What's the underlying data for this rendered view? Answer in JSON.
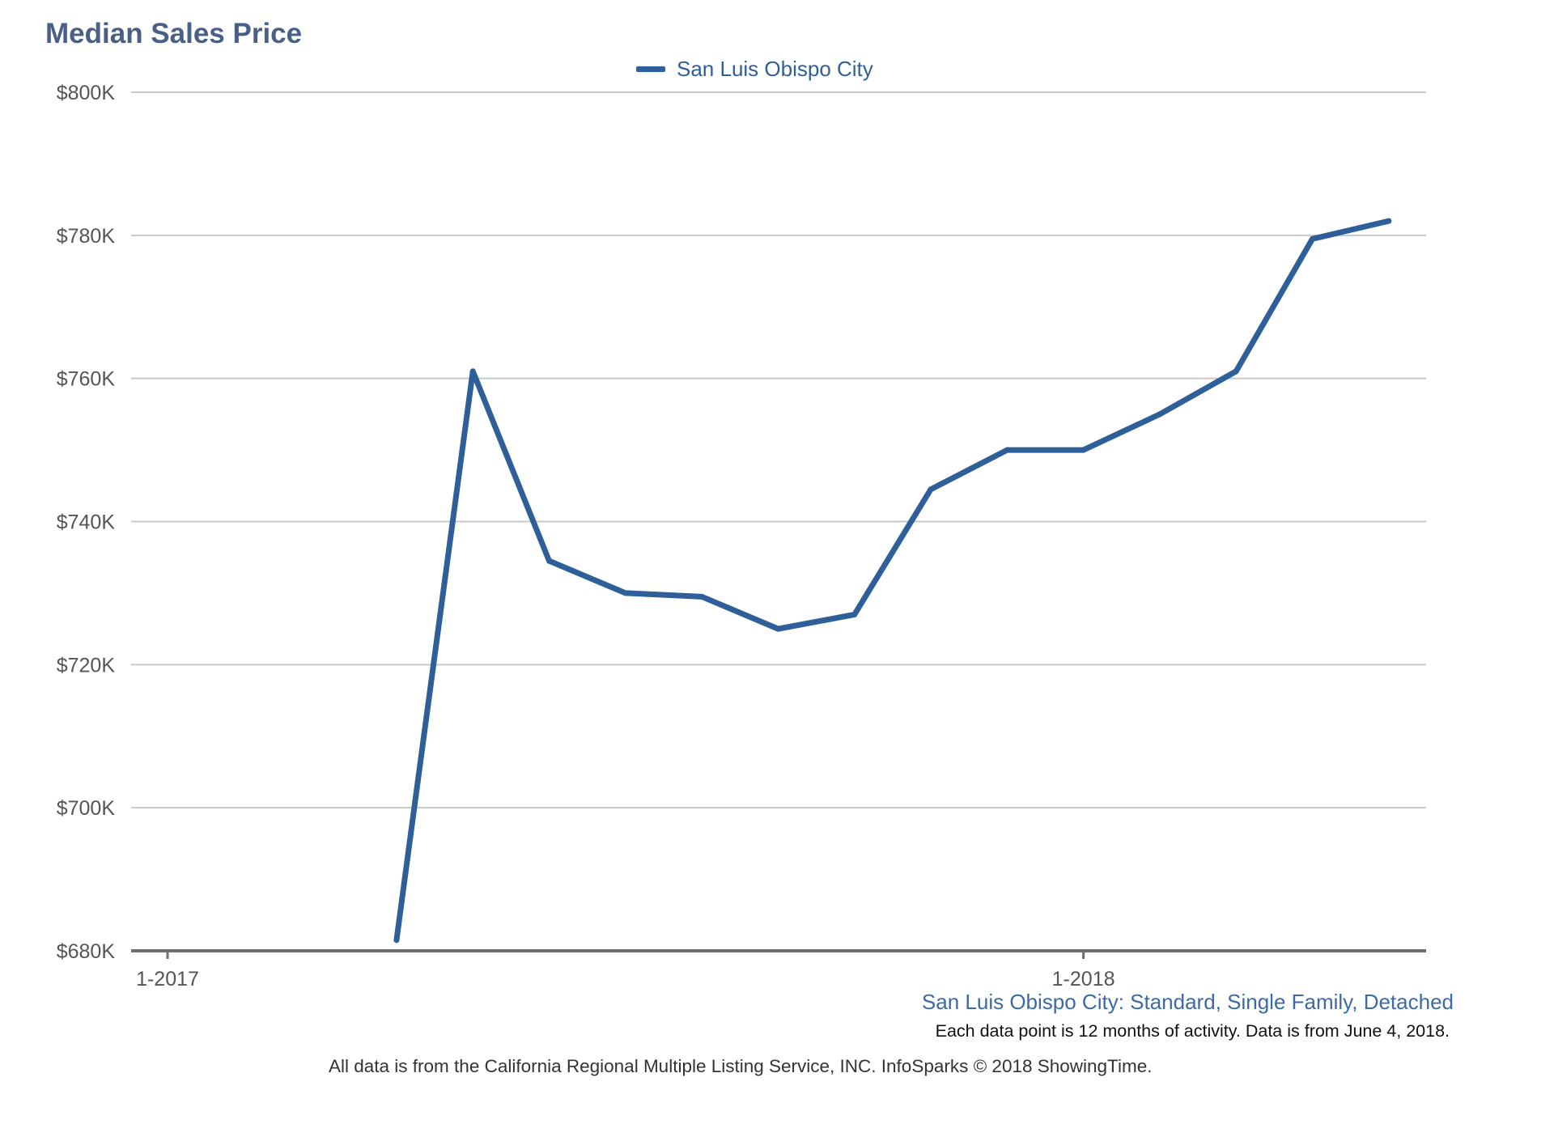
{
  "chart_data": {
    "type": "line",
    "title": "Median Sales Price",
    "xlabel": "",
    "ylabel": "",
    "x_ticks": [
      "1-2017",
      "1-2018"
    ],
    "y_ticks": [
      "$680K",
      "$700K",
      "$720K",
      "$740K",
      "$760K",
      "$780K",
      "$800K"
    ],
    "ylim": [
      680000,
      800000
    ],
    "xlim": [
      "2016-12",
      "2018-05"
    ],
    "grid": true,
    "legend": "top-center",
    "series": [
      {
        "name": "San Luis Obispo City",
        "color": "#2f5f98",
        "x": [
          "2017-04",
          "2017-05",
          "2017-06",
          "2017-07",
          "2017-08",
          "2017-09",
          "2017-10",
          "2017-11",
          "2017-12",
          "2018-01",
          "2018-02",
          "2018-03",
          "2018-04",
          "2018-05"
        ],
        "values": [
          681500,
          761000,
          734500,
          730000,
          729500,
          725000,
          727000,
          744500,
          750000,
          750000,
          755000,
          761000,
          779500,
          782000
        ]
      }
    ]
  },
  "subtitle": "San Luis Obispo City: Standard, Single Family, Detached",
  "note": "Each data point is 12 months of activity. Data is from June 4, 2018.",
  "source": "All data is from the California Regional Multiple Listing Service, INC. InfoSparks © 2018 ShowingTime."
}
